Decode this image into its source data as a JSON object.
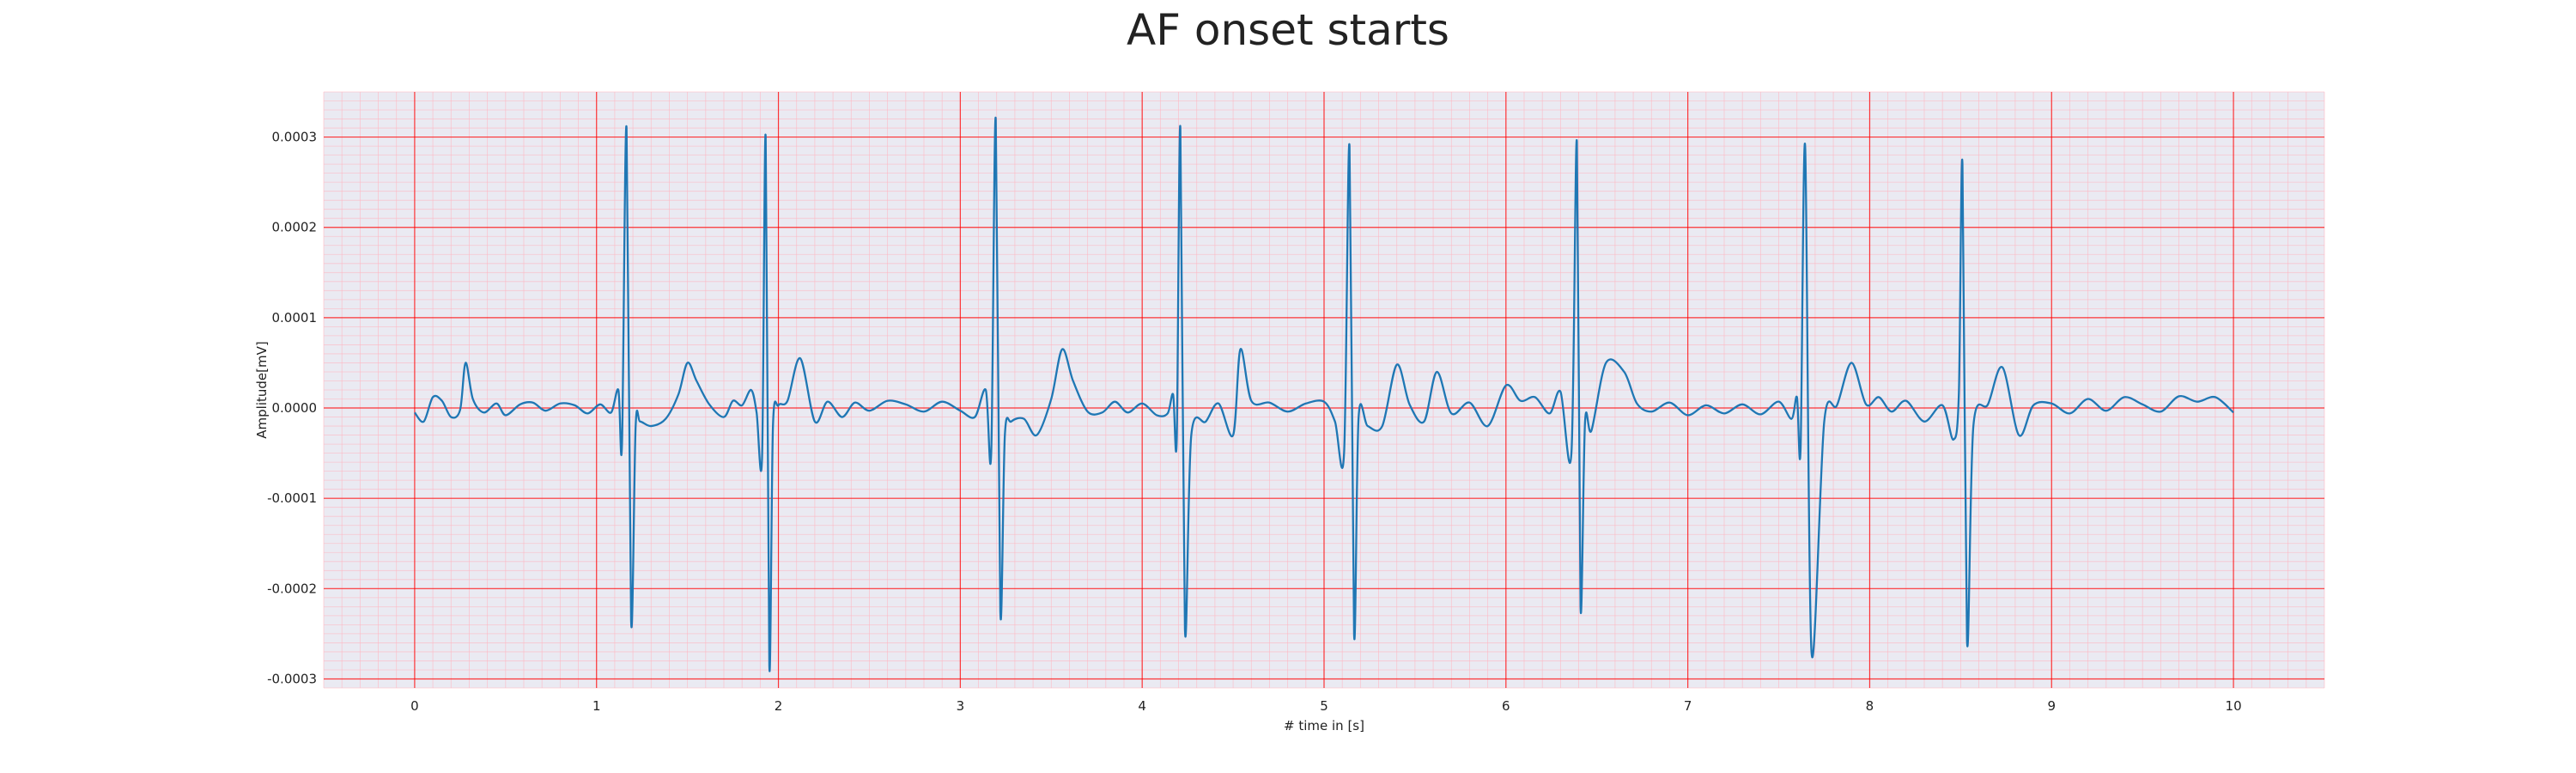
{
  "chart_data": {
    "type": "line",
    "title": "AF onset starts",
    "xlabel": "# time in [s]",
    "ylabel": "Amplitude[mV]",
    "xlim": [
      -0.5,
      10.5
    ],
    "ylim": [
      -0.00031,
      0.00035
    ],
    "x_ticks": [
      0,
      1,
      2,
      3,
      4,
      5,
      6,
      7,
      8,
      9,
      10
    ],
    "x_tick_labels": [
      "0",
      "1",
      "2",
      "3",
      "4",
      "5",
      "6",
      "7",
      "8",
      "9",
      "10"
    ],
    "y_ticks": [
      -0.0003,
      -0.0002,
      -0.0001,
      0,
      0.0001,
      0.0002,
      0.0003
    ],
    "y_tick_labels": [
      "-0.0003",
      "-0.0002",
      "-0.0001",
      "0.0000",
      "0.0001",
      "0.0002",
      "0.0003"
    ],
    "grid": true,
    "minor_grid": true,
    "colors": {
      "line": "#1f77b4",
      "background": "#eaeaf2",
      "major_grid": "#ff0000",
      "minor_grid": "#ffb6c1"
    },
    "series": [
      {
        "x": [
          0.0,
          0.05,
          0.1,
          0.15,
          0.2,
          0.25,
          0.28,
          0.32,
          0.38,
          0.45,
          0.5,
          0.58,
          0.65,
          0.72,
          0.8,
          0.88,
          0.95,
          1.02,
          1.08,
          1.12,
          1.14,
          1.165,
          1.19,
          1.215,
          1.24,
          1.3,
          1.38,
          1.45,
          1.5,
          1.55,
          1.62,
          1.7,
          1.75,
          1.8,
          1.85,
          1.88,
          1.91,
          1.93,
          1.95,
          1.97,
          2.0,
          2.05,
          2.12,
          2.2,
          2.27,
          2.35,
          2.42,
          2.5,
          2.6,
          2.7,
          2.8,
          2.9,
          3.0,
          3.08,
          3.14,
          3.17,
          3.195,
          3.22,
          3.245,
          3.28,
          3.35,
          3.42,
          3.5,
          3.56,
          3.62,
          3.7,
          3.78,
          3.85,
          3.92,
          4.0,
          4.08,
          4.14,
          4.17,
          4.19,
          4.21,
          4.235,
          4.27,
          4.35,
          4.42,
          4.5,
          4.54,
          4.6,
          4.7,
          4.8,
          4.9,
          5.0,
          5.06,
          5.11,
          5.14,
          5.165,
          5.19,
          5.24,
          5.32,
          5.4,
          5.47,
          5.55,
          5.62,
          5.7,
          5.8,
          5.9,
          6.0,
          6.08,
          6.16,
          6.24,
          6.3,
          6.36,
          6.39,
          6.41,
          6.435,
          6.47,
          6.55,
          6.65,
          6.72,
          6.8,
          6.9,
          7.0,
          7.1,
          7.2,
          7.3,
          7.4,
          7.5,
          7.57,
          7.6,
          7.62,
          7.645,
          7.68,
          7.75,
          7.82,
          7.9,
          7.98,
          8.05,
          8.12,
          8.2,
          8.3,
          8.4,
          8.46,
          8.49,
          8.51,
          8.535,
          8.57,
          8.65,
          8.73,
          8.82,
          8.9,
          9.0,
          9.1,
          9.2,
          9.3,
          9.4,
          9.5,
          9.6,
          9.7,
          9.8,
          9.9,
          10.0
        ],
        "y": [
          -5e-06,
          -1.5e-05,
          1.2e-05,
          8e-06,
          -1e-05,
          -2e-06,
          5e-05,
          1e-05,
          -5e-06,
          5e-06,
          -8e-06,
          4e-06,
          6e-06,
          -3e-06,
          5e-06,
          3e-06,
          -6e-06,
          4e-06,
          -5e-06,
          2e-05,
          -4e-05,
          0.00031,
          -0.000235,
          -2e-05,
          -1.5e-05,
          -2e-05,
          -1.2e-05,
          1.5e-05,
          5e-05,
          3e-05,
          4e-06,
          -1e-05,
          8e-06,
          3e-06,
          2e-05,
          -5e-06,
          -5.5e-05,
          0.0003,
          -0.000285,
          -2e-05,
          3e-06,
          8e-06,
          5.5e-05,
          -1.5e-05,
          7e-06,
          -1e-05,
          6e-06,
          -3e-06,
          8e-06,
          4e-06,
          -4e-06,
          7e-06,
          -3e-06,
          -1e-05,
          2e-05,
          -5e-05,
          0.00032,
          -0.000225,
          -3e-05,
          -1.5e-05,
          -1.2e-05,
          -3e-05,
          1e-05,
          6.5e-05,
          3e-05,
          -4e-06,
          -5e-06,
          7e-06,
          -5e-06,
          5e-06,
          -8e-06,
          -6e-06,
          1.5e-05,
          -3.5e-05,
          0.00031,
          -0.000245,
          -3e-05,
          -1.5e-05,
          5e-06,
          -3e-05,
          6.5e-05,
          8e-06,
          6e-06,
          -4e-06,
          5e-06,
          7e-06,
          -1.5e-05,
          -5e-05,
          0.00029,
          -0.00025,
          -1e-05,
          -2e-05,
          -2e-05,
          4.8e-05,
          4e-06,
          -1.5e-05,
          4e-05,
          -6e-06,
          6e-06,
          -2e-05,
          2.5e-05,
          8e-06,
          1.2e-05,
          -6e-06,
          1.8e-05,
          -5e-05,
          0.000295,
          -0.00022,
          -1.5e-05,
          -2.5e-05,
          5e-05,
          4e-05,
          5e-06,
          -4e-06,
          6e-06,
          -8e-06,
          3e-06,
          -6e-06,
          4e-06,
          -7e-06,
          7e-06,
          -1.2e-05,
          1.2e-05,
          -4.5e-05,
          0.00029,
          -0.00027,
          -1.5e-05,
          3e-06,
          5e-05,
          4e-06,
          1.2e-05,
          -4e-06,
          8e-06,
          -1.5e-05,
          3e-06,
          -3.5e-05,
          1.5e-05,
          0.00027,
          -0.000258,
          -2e-05,
          4e-06,
          4.5e-05,
          -3e-05,
          3e-06,
          5e-06,
          -6e-06,
          1e-05,
          -3e-06,
          1.2e-05,
          4e-06,
          -4e-06,
          1.3e-05,
          7e-06,
          1.2e-05,
          -5e-06
        ]
      }
    ]
  }
}
